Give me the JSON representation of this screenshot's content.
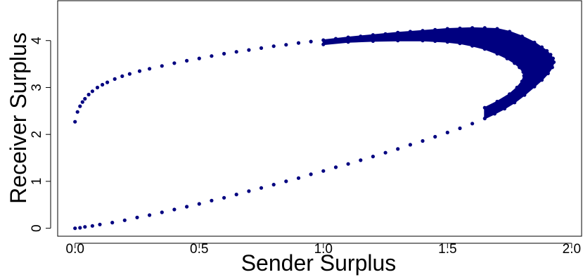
{
  "chart_data": {
    "type": "scatter",
    "title": "",
    "xlabel": "Sender Surplus",
    "ylabel": "Receiver Surplus",
    "xlim": [
      -0.07,
      2.04
    ],
    "ylim": [
      -0.17,
      4.85
    ],
    "xticks": [
      0.0,
      0.5,
      1.0,
      1.5,
      2.0
    ],
    "xtick_labels": [
      "0.0",
      "0.5",
      "1.0",
      "1.5",
      "2.0"
    ],
    "yticks": [
      0,
      1,
      2,
      3,
      4
    ],
    "ytick_labels": [
      "0",
      "1",
      "2",
      "3",
      "4"
    ],
    "grid": false,
    "legend": "none",
    "point_color": "#000080",
    "series": [
      {
        "description_key": "frontier",
        "points": [
          [
            0.0,
            2.27
          ],
          [
            0.01,
            2.48
          ],
          [
            0.02,
            2.6
          ],
          [
            0.03,
            2.69
          ],
          [
            0.04,
            2.76
          ],
          [
            0.055,
            2.85
          ],
          [
            0.07,
            2.92
          ],
          [
            0.09,
            3.0
          ],
          [
            0.11,
            3.06
          ],
          [
            0.13,
            3.11
          ],
          [
            0.16,
            3.18
          ],
          [
            0.19,
            3.24
          ],
          [
            0.22,
            3.29
          ],
          [
            0.26,
            3.35
          ],
          [
            0.3,
            3.4
          ],
          [
            0.35,
            3.46
          ],
          [
            0.4,
            3.52
          ],
          [
            0.45,
            3.57
          ],
          [
            0.5,
            3.62
          ],
          [
            0.55,
            3.67
          ],
          [
            0.6,
            3.72
          ],
          [
            0.65,
            3.76
          ],
          [
            0.7,
            3.8
          ],
          [
            0.75,
            3.84
          ],
          [
            0.8,
            3.88
          ],
          [
            0.85,
            3.91
          ],
          [
            0.9,
            3.95
          ],
          [
            0.95,
            3.98
          ],
          [
            1.0,
            4.01
          ],
          [
            1.05,
            4.04
          ],
          [
            1.1,
            4.07
          ],
          [
            1.15,
            4.09
          ],
          [
            1.2,
            4.12
          ],
          [
            1.25,
            4.14
          ],
          [
            1.3,
            4.17
          ],
          [
            1.35,
            4.19
          ],
          [
            1.4,
            4.21
          ],
          [
            1.45,
            4.23
          ],
          [
            1.5,
            4.25
          ],
          [
            1.55,
            4.26
          ],
          [
            1.6,
            4.27
          ],
          [
            1.65,
            4.27
          ],
          [
            1.7,
            4.25
          ],
          [
            1.75,
            4.19
          ],
          [
            1.8,
            4.09
          ],
          [
            1.85,
            3.96
          ],
          [
            1.88,
            3.86
          ],
          [
            1.9,
            3.78
          ],
          [
            1.915,
            3.7
          ],
          [
            1.925,
            3.62
          ],
          [
            1.928,
            3.54
          ],
          [
            1.922,
            3.43
          ],
          [
            1.905,
            3.3
          ],
          [
            1.88,
            3.16
          ],
          [
            1.85,
            3.02
          ],
          [
            1.81,
            2.84
          ],
          [
            1.77,
            2.68
          ],
          [
            1.73,
            2.55
          ],
          [
            1.69,
            2.44
          ],
          [
            1.65,
            2.34
          ],
          [
            1.6,
            2.23
          ],
          [
            1.55,
            2.13
          ],
          [
            1.5,
            2.04
          ],
          [
            1.45,
            1.95
          ],
          [
            1.4,
            1.86
          ],
          [
            1.35,
            1.78
          ],
          [
            1.3,
            1.69
          ],
          [
            1.25,
            1.61
          ],
          [
            1.2,
            1.53
          ],
          [
            1.15,
            1.45
          ],
          [
            1.1,
            1.37
          ],
          [
            1.05,
            1.3
          ],
          [
            1.0,
            1.22
          ],
          [
            0.95,
            1.15
          ],
          [
            0.9,
            1.07
          ],
          [
            0.85,
            1.0
          ],
          [
            0.8,
            0.93
          ],
          [
            0.75,
            0.86
          ],
          [
            0.7,
            0.79
          ],
          [
            0.65,
            0.72
          ],
          [
            0.6,
            0.65
          ],
          [
            0.55,
            0.59
          ],
          [
            0.5,
            0.52
          ],
          [
            0.45,
            0.46
          ],
          [
            0.4,
            0.4
          ],
          [
            0.35,
            0.34
          ],
          [
            0.3,
            0.28
          ],
          [
            0.25,
            0.23
          ],
          [
            0.2,
            0.17
          ],
          [
            0.15,
            0.12
          ],
          [
            0.1,
            0.08
          ],
          [
            0.07,
            0.05
          ],
          [
            0.04,
            0.03
          ],
          [
            0.02,
            0.01
          ],
          [
            0.0,
            0.0
          ]
        ]
      },
      {
        "description_key": "inner-boundary",
        "points": [
          [
            1.0,
            3.92
          ],
          [
            1.1,
            3.97
          ],
          [
            1.2,
            3.99
          ],
          [
            1.3,
            4.0
          ],
          [
            1.4,
            4.0
          ],
          [
            1.45,
            3.99
          ],
          [
            1.5,
            3.97
          ],
          [
            1.55,
            3.94
          ],
          [
            1.6,
            3.89
          ],
          [
            1.65,
            3.82
          ],
          [
            1.7,
            3.72
          ],
          [
            1.74,
            3.62
          ],
          [
            1.77,
            3.52
          ],
          [
            1.79,
            3.43
          ],
          [
            1.805,
            3.33
          ],
          [
            1.808,
            3.25
          ],
          [
            1.8,
            3.13
          ],
          [
            1.78,
            3.0
          ],
          [
            1.75,
            2.86
          ],
          [
            1.7,
            2.7
          ],
          [
            1.65,
            2.57
          ]
        ]
      }
    ],
    "band": {
      "outer_upper": [
        [
          1.0,
          4.01
        ],
        [
          1.1,
          4.07
        ],
        [
          1.2,
          4.12
        ],
        [
          1.3,
          4.17
        ],
        [
          1.4,
          4.21
        ],
        [
          1.5,
          4.25
        ],
        [
          1.6,
          4.27
        ],
        [
          1.7,
          4.25
        ],
        [
          1.75,
          4.19
        ],
        [
          1.8,
          4.09
        ],
        [
          1.85,
          3.96
        ],
        [
          1.9,
          3.78
        ],
        [
          1.925,
          3.62
        ],
        [
          1.928,
          3.54
        ],
        [
          1.922,
          3.43
        ],
        [
          1.905,
          3.3
        ],
        [
          1.88,
          3.16
        ],
        [
          1.85,
          3.02
        ],
        [
          1.81,
          2.84
        ],
        [
          1.77,
          2.68
        ],
        [
          1.73,
          2.55
        ],
        [
          1.69,
          2.44
        ],
        [
          1.65,
          2.34
        ]
      ],
      "inner_lower": [
        [
          1.65,
          2.57
        ],
        [
          1.7,
          2.7
        ],
        [
          1.75,
          2.86
        ],
        [
          1.78,
          3.0
        ],
        [
          1.8,
          3.13
        ],
        [
          1.808,
          3.25
        ],
        [
          1.805,
          3.33
        ],
        [
          1.79,
          3.43
        ],
        [
          1.77,
          3.52
        ],
        [
          1.74,
          3.62
        ],
        [
          1.7,
          3.72
        ],
        [
          1.65,
          3.82
        ],
        [
          1.6,
          3.89
        ],
        [
          1.55,
          3.94
        ],
        [
          1.5,
          3.97
        ],
        [
          1.4,
          4.0
        ],
        [
          1.3,
          4.0
        ],
        [
          1.2,
          3.99
        ],
        [
          1.1,
          3.97
        ],
        [
          1.0,
          3.92
        ]
      ]
    }
  }
}
